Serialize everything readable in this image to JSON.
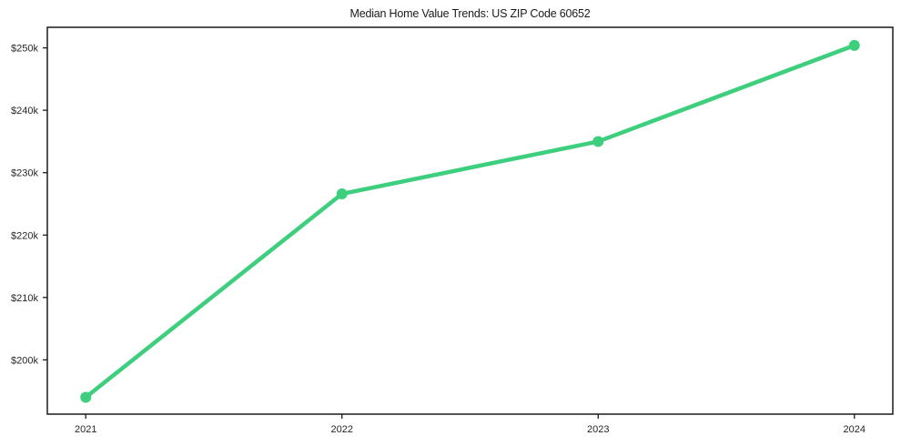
{
  "figure": {
    "title": "Median Home Value Trends: US ZIP Code 60652"
  },
  "chart_data": {
    "type": "line",
    "title": "Median Home Value Trends: US ZIP Code 60652",
    "xlabel": "",
    "ylabel": "",
    "x": [
      2021,
      2022,
      2023,
      2024
    ],
    "series": [
      {
        "name": "Median Home Value",
        "values": [
          194000,
          226600,
          235000,
          250400
        ]
      }
    ],
    "x_tick_labels": [
      "2021",
      "2022",
      "2023",
      "2024"
    ],
    "y_tick_values": [
      200000,
      210000,
      220000,
      230000,
      240000,
      250000
    ],
    "y_tick_labels": [
      "$200k",
      "$210k",
      "$220k",
      "$230k",
      "$240k",
      "$250k"
    ],
    "xlim": [
      2020.85,
      2024.15
    ],
    "ylim": [
      191300,
      253300
    ],
    "grid": false,
    "legend": "none",
    "marker": "circle",
    "colors": {
      "line": "#3ecf7e",
      "marker": "#3ecf7e",
      "axis": "#1a1a1a",
      "tick_label": "#262626",
      "background": "#ffffff"
    }
  }
}
